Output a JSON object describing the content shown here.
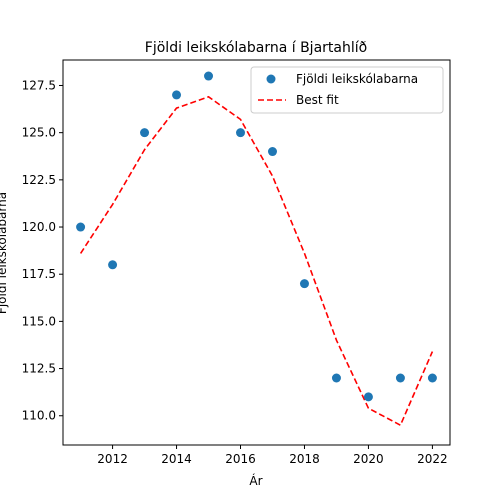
{
  "chart_data": {
    "type": "scatter",
    "title": "Fjöldi leikskólabarna í Bjartahlíð",
    "xlabel": "Ár",
    "ylabel": "Fjöldi leikskólabarna",
    "xlim": [
      2010.45,
      2022.55
    ],
    "ylim": [
      108.45,
      128.85
    ],
    "xticks": [
      2012,
      2014,
      2016,
      2018,
      2020,
      2022
    ],
    "yticks": [
      "110.0",
      "112.5",
      "115.0",
      "117.5",
      "120.0",
      "122.5",
      "125.0",
      "127.5"
    ],
    "grid": false,
    "legend_position": "upper-right",
    "series": [
      {
        "name": "Fjöldi leikskólabarna",
        "kind": "scatter",
        "color": "#1f77b4",
        "x": [
          2011,
          2012,
          2013,
          2014,
          2015,
          2016,
          2017,
          2018,
          2019,
          2020,
          2021,
          2022
        ],
        "y": [
          120,
          118,
          125,
          127,
          128,
          125,
          124,
          117,
          112,
          111,
          112,
          112
        ]
      },
      {
        "name": "Best fit",
        "kind": "line",
        "style": "dashed",
        "color": "#ff0000",
        "x": [
          2011,
          2012,
          2013,
          2014,
          2015,
          2016,
          2017,
          2018,
          2019,
          2020,
          2021,
          2022
        ],
        "y": [
          118.6,
          121.2,
          124.1,
          126.3,
          126.9,
          125.7,
          122.7,
          118.6,
          114.0,
          110.4,
          109.5,
          113.4
        ]
      }
    ]
  }
}
